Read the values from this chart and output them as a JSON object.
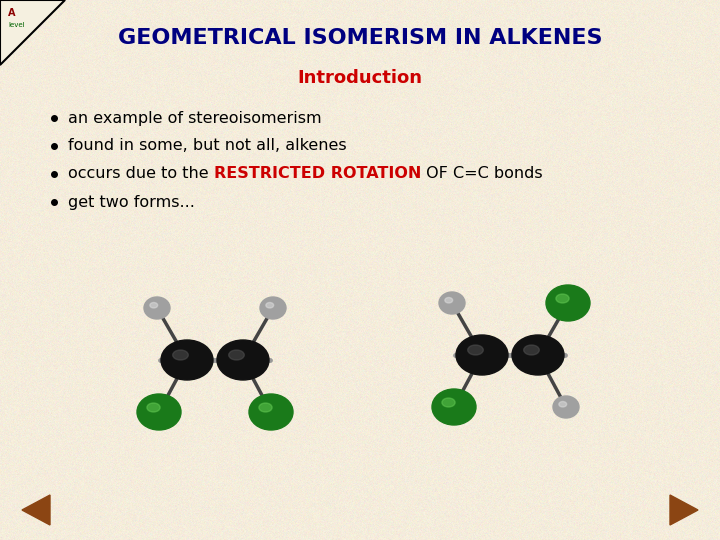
{
  "title": "GEOMETRICAL ISOMERISM IN ALKENES",
  "subtitle": "Introduction",
  "bg_color": "#f5eddc",
  "title_color": "#000080",
  "subtitle_color": "#cc0000",
  "bullet_color": "#000000",
  "bullet_points": [
    [
      "an example of stereoisomerism"
    ],
    [
      "found in some, but not all, alkenes"
    ],
    [
      "occurs due to the ",
      "RESTRICTED ROTATION",
      " OF C=C bonds"
    ],
    [
      "get two forms..."
    ]
  ],
  "highlight_color": "#cc0000",
  "nav_color": "#8b4513",
  "carbon_color": "#111111",
  "h_color": "#b0b0b0",
  "cl_color": "#228B22",
  "bond_color": "#999999",
  "stick_color": "#444444"
}
